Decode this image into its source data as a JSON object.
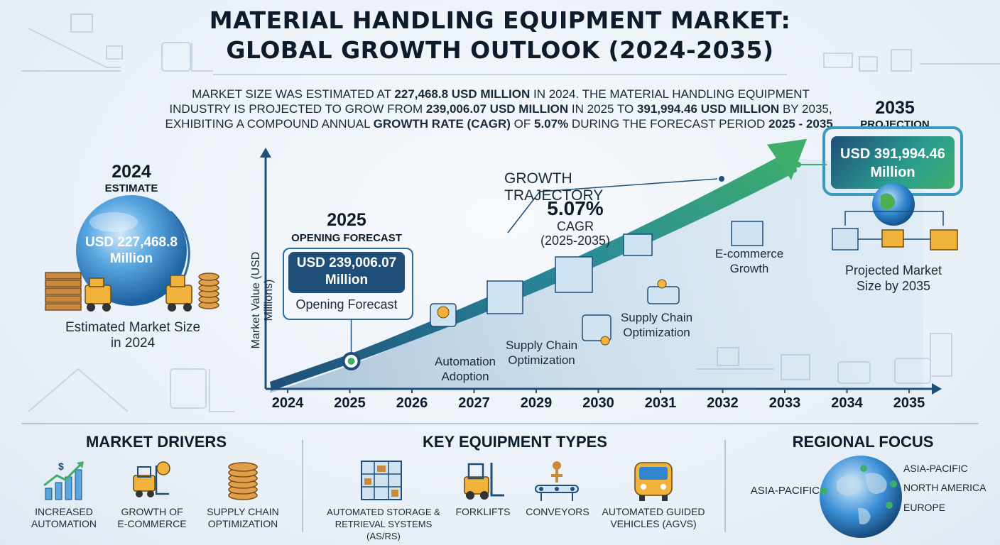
{
  "title_line1": "MATERIAL HANDLING EQUIPMENT MARKET:",
  "title_line2": "GLOBAL GROWTH OUTLOOK (2024-2035)",
  "summary": {
    "p1": "Market size was estimated at ",
    "v1": "227,468.8 USD Million",
    "p2": " in 2024. The material handling equipment industry is projected to grow from ",
    "v2": "239,006.07 USD Million",
    "p3": " in 2025 to ",
    "v3": "391,994.46 USD Million",
    "p4": " by 2035, exhibiting a compound annual ",
    "v4": "growth rate (CAGR)",
    "p5": " of ",
    "v5": "5.07%",
    "p6": " during the forecast period ",
    "v6": "2025 - 2035",
    "p7": "."
  },
  "estimate_2024": {
    "year": "2024",
    "label": "ESTIMATE",
    "value_line1": "USD 227,468.8",
    "value_line2": "Million",
    "caption_line1": "Estimated Market Size",
    "caption_line2": "in 2024"
  },
  "forecast_2025": {
    "year": "2025",
    "label": "OPENING FORECAST",
    "value_line1": "USD 239,006.07",
    "value_line2": "Million",
    "caption": "Opening Forecast"
  },
  "projection_2035": {
    "year": "2035",
    "label": "PROJECTION",
    "value_line1": "USD 391,994.46",
    "value_line2": "Million",
    "caption_line1": "Projected Market",
    "caption_line2": "Size by 2035"
  },
  "trajectory": {
    "label": "GROWTH TRAJECTORY",
    "cagr": "5.07%",
    "cagr_label": "CAGR",
    "cagr_period": "(2025-2035)"
  },
  "annotations": {
    "automation_1": "Automation",
    "automation_2": "Adoption",
    "sc1_1": "Supply Chain",
    "sc1_2": "Optimization",
    "sc2_1": "Supply Chain",
    "sc2_2": "Optimization",
    "ecom_1": "E-commerce",
    "ecom_2": "Growth"
  },
  "chart_data": {
    "type": "area",
    "ylabel": "Market Value (USD Millions)",
    "x": [
      "2024",
      "2025",
      "2026",
      "2027",
      "2029",
      "2030",
      "2031",
      "2032",
      "2033",
      "2034",
      "2035"
    ],
    "points": [
      {
        "year": 2025,
        "value": 239006.07
      },
      {
        "year": 2035,
        "value": 391994.46
      }
    ],
    "estimate": {
      "year": 2024,
      "value": 227468.8
    },
    "cagr_percent": 5.07,
    "grid": false
  },
  "market_drivers": {
    "title": "MARKET DRIVERS",
    "items": [
      {
        "l1": "INCREASED",
        "l2": "AUTOMATION",
        "icon": "growth-chart-icon"
      },
      {
        "l1": "GROWTH OF",
        "l2": "E-COMMERCE",
        "icon": "forklift-coin-icon"
      },
      {
        "l1": "SUPPLY CHAIN",
        "l2": "OPTIMIZATION",
        "icon": "coin-stack-icon"
      }
    ]
  },
  "equipment_types": {
    "title": "KEY EQUIPMENT TYPES",
    "items": [
      {
        "l1": "AUTOMATED STORAGE &",
        "l2": "RETRIEVAL SYSTEMS (AS/RS)",
        "icon": "storage-rack-icon"
      },
      {
        "l1": "FORKLIFTS",
        "l2": "",
        "icon": "forklift-icon"
      },
      {
        "l1": "CONVEYORS",
        "l2": "",
        "icon": "conveyor-icon"
      },
      {
        "l1": "AUTOMATED GUIDED",
        "l2": "VEHICLES (AGVS)",
        "icon": "agv-icon"
      }
    ]
  },
  "regional_focus": {
    "title": "REGIONAL FOCUS",
    "left": "ASIA-PACIFIC",
    "right": [
      "ASIA-PACIFIC",
      "NORTH AMERICA",
      "EUROPE"
    ]
  },
  "colors": {
    "navy": "#1f4e79",
    "teal": "#2a9d8f",
    "green": "#3fae6a",
    "blue_sphere": "#3a8fd6"
  }
}
